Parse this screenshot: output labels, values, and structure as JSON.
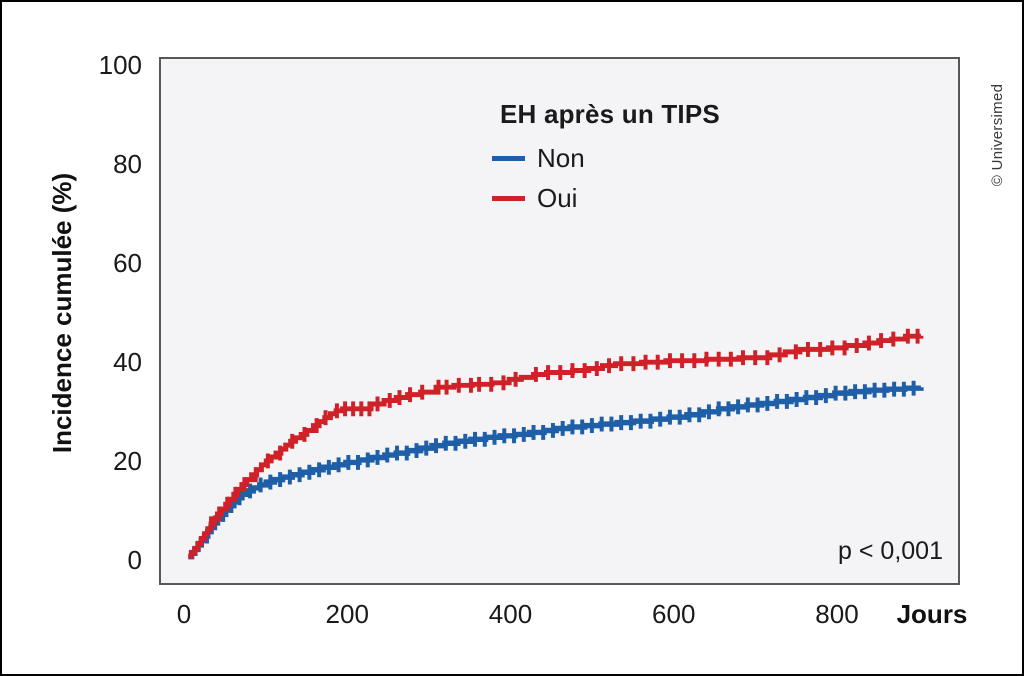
{
  "credit": "© Universimed",
  "chart_data": {
    "type": "line",
    "subtype": "cumulative-incidence-step-curves-with-censor-marks",
    "title": "EH après un TIPS",
    "xlabel": "Jours",
    "ylabel": "Incidence cumulée (%)",
    "annotation": "p < 0,001",
    "xlim": [
      0,
      930
    ],
    "ylim": [
      0,
      100
    ],
    "xticks": [
      0,
      200,
      400,
      600,
      800
    ],
    "yticks": [
      0,
      20,
      40,
      60,
      80,
      100
    ],
    "grid": false,
    "legend_position": "top-center-inside",
    "plot_background": "#f4f4f6",
    "series": [
      {
        "name": "Non",
        "color": "#1e5fa8",
        "points": [
          [
            3,
            0.3
          ],
          [
            7,
            1
          ],
          [
            11,
            1.8
          ],
          [
            15,
            2.7
          ],
          [
            19,
            3.6
          ],
          [
            23,
            4.5
          ],
          [
            27,
            5.4
          ],
          [
            31,
            6.3
          ],
          [
            35,
            7.2
          ],
          [
            39,
            8
          ],
          [
            44,
            8.9
          ],
          [
            49,
            9.8
          ],
          [
            54,
            10.7
          ],
          [
            59,
            11.5
          ],
          [
            64,
            12.3
          ],
          [
            69,
            13
          ],
          [
            76,
            13.7
          ],
          [
            83,
            14.3
          ],
          [
            91,
            14.9
          ],
          [
            99,
            15.5
          ],
          [
            109,
            16
          ],
          [
            119,
            16.5
          ],
          [
            131,
            17
          ],
          [
            143,
            17.5
          ],
          [
            156,
            18
          ],
          [
            169,
            18.5
          ],
          [
            183,
            19
          ],
          [
            197,
            19.5
          ],
          [
            213,
            20
          ],
          [
            229,
            20.5
          ],
          [
            245,
            21
          ],
          [
            259,
            21.4
          ],
          [
            273,
            21.9
          ],
          [
            289,
            22.4
          ],
          [
            303,
            22.9
          ],
          [
            319,
            23.4
          ],
          [
            335,
            23.8
          ],
          [
            351,
            24.2
          ],
          [
            369,
            24.6
          ],
          [
            387,
            24.9
          ],
          [
            405,
            25.2
          ],
          [
            423,
            25.6
          ],
          [
            441,
            26
          ],
          [
            456,
            26.4
          ],
          [
            473,
            26.7
          ],
          [
            491,
            27
          ],
          [
            511,
            27.3
          ],
          [
            531,
            27.6
          ],
          [
            551,
            27.9
          ],
          [
            573,
            28.3
          ],
          [
            595,
            28.7
          ],
          [
            617,
            29.2
          ],
          [
            637,
            29.8
          ],
          [
            656,
            30.4
          ],
          [
            673,
            30.8
          ],
          [
            691,
            31.2
          ],
          [
            709,
            31.5
          ],
          [
            727,
            31.9
          ],
          [
            745,
            32.3
          ],
          [
            763,
            32.7
          ],
          [
            781,
            33.1
          ],
          [
            799,
            33.6
          ],
          [
            819,
            33.9
          ],
          [
            841,
            34.2
          ],
          [
            863,
            34.4
          ],
          [
            885,
            34.6
          ],
          [
            905,
            34.8
          ]
        ],
        "censor_days": [
          26,
          36,
          46,
          56,
          66,
          79,
          92,
          104,
          116,
          128,
          140,
          152,
          164,
          176,
          188,
          200,
          212,
          224,
          236,
          248,
          260,
          272,
          284,
          296,
          308,
          320,
          332,
          344,
          356,
          368,
          380,
          392,
          404,
          416,
          428,
          440,
          452,
          464,
          476,
          488,
          500,
          512,
          524,
          536,
          548,
          560,
          572,
          584,
          596,
          608,
          620,
          632,
          644,
          656,
          668,
          680,
          692,
          704,
          716,
          728,
          740,
          752,
          764,
          776,
          788,
          800,
          812,
          824,
          836,
          848,
          860,
          872,
          884,
          896
        ]
      },
      {
        "name": "Oui",
        "color": "#d02028",
        "points": [
          [
            3,
            0.4
          ],
          [
            7,
            1.2
          ],
          [
            11,
            2
          ],
          [
            15,
            3
          ],
          [
            19,
            4
          ],
          [
            23,
            5
          ],
          [
            27,
            6
          ],
          [
            31,
            7
          ],
          [
            35,
            8
          ],
          [
            39,
            9
          ],
          [
            44,
            10
          ],
          [
            49,
            11
          ],
          [
            54,
            12
          ],
          [
            59,
            13
          ],
          [
            64,
            14
          ],
          [
            69,
            15
          ],
          [
            75,
            16
          ],
          [
            81,
            17
          ],
          [
            87,
            18
          ],
          [
            93,
            19
          ],
          [
            99,
            19.8
          ],
          [
            105,
            20.6
          ],
          [
            111,
            21.4
          ],
          [
            117,
            22.2
          ],
          [
            123,
            23
          ],
          [
            129,
            23.8
          ],
          [
            135,
            24.5
          ],
          [
            142,
            25.2
          ],
          [
            149,
            26
          ],
          [
            157,
            27
          ],
          [
            164,
            27.8
          ],
          [
            171,
            28.6
          ],
          [
            178,
            29.4
          ],
          [
            185,
            30
          ],
          [
            193,
            30.4
          ],
          [
            228,
            31.4
          ],
          [
            244,
            32.1
          ],
          [
            259,
            32.7
          ],
          [
            273,
            33.3
          ],
          [
            289,
            33.8
          ],
          [
            308,
            34.8
          ],
          [
            330,
            35.2
          ],
          [
            353,
            35.4
          ],
          [
            377,
            35.7
          ],
          [
            398,
            36.4
          ],
          [
            413,
            36.8
          ],
          [
            428,
            37.4
          ],
          [
            444,
            37.8
          ],
          [
            476,
            38.2
          ],
          [
            496,
            38.6
          ],
          [
            513,
            39.2
          ],
          [
            529,
            39.6
          ],
          [
            561,
            39.9
          ],
          [
            591,
            40.2
          ],
          [
            641,
            40.5
          ],
          [
            681,
            40.8
          ],
          [
            719,
            41.4
          ],
          [
            738,
            42
          ],
          [
            756,
            42.5
          ],
          [
            791,
            42.8
          ],
          [
            813,
            43.3
          ],
          [
            836,
            43.8
          ],
          [
            853,
            44.3
          ],
          [
            869,
            44.6
          ],
          [
            886,
            45.2
          ],
          [
            905,
            45.3
          ]
        ],
        "censor_days": [
          31,
          41,
          51,
          61,
          72,
          86,
          101,
          116,
          131,
          146,
          161,
          172,
          186,
          196,
          206,
          216,
          226,
          236,
          251,
          263,
          276,
          291,
          311,
          321,
          336,
          351,
          361,
          376,
          391,
          406,
          431,
          446,
          461,
          476,
          491,
          506,
          521,
          536,
          551,
          566,
          581,
          596,
          611,
          626,
          641,
          656,
          671,
          686,
          701,
          716,
          731,
          751,
          766,
          781,
          796,
          811,
          826,
          841,
          856,
          871,
          889,
          901
        ]
      }
    ]
  }
}
